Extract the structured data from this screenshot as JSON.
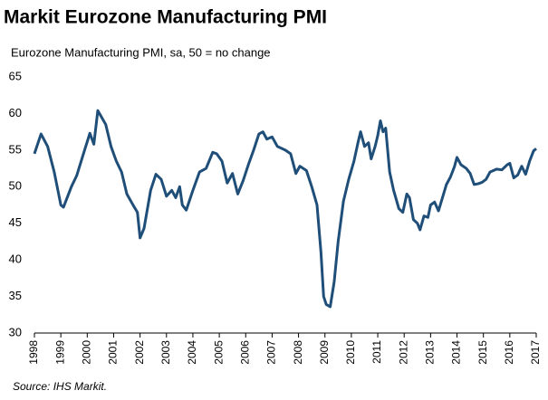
{
  "chart_data": {
    "type": "line",
    "title": "Markit Eurozone Manufacturing PMI",
    "subtitle": "Eurozone Manufacturing PMI, sa, 50 = no change",
    "source": "Source: IHS Markit.",
    "x": [
      1998.0,
      1998.25,
      1998.5,
      1998.75,
      1999.0,
      1999.1,
      1999.4,
      1999.6,
      1999.9,
      2000.1,
      2000.25,
      2000.4,
      2000.7,
      2000.9,
      2001.1,
      2001.3,
      2001.5,
      2001.75,
      2001.9,
      2002.0,
      2002.15,
      2002.4,
      2002.6,
      2002.8,
      2003.0,
      2003.2,
      2003.35,
      2003.5,
      2003.6,
      2003.75,
      2004.0,
      2004.25,
      2004.5,
      2004.75,
      2004.9,
      2005.1,
      2005.3,
      2005.5,
      2005.7,
      2005.9,
      2006.1,
      2006.3,
      2006.5,
      2006.65,
      2006.8,
      2007.0,
      2007.2,
      2007.5,
      2007.7,
      2007.9,
      2008.05,
      2008.3,
      2008.5,
      2008.7,
      2008.85,
      2008.95,
      2009.05,
      2009.2,
      2009.35,
      2009.5,
      2009.7,
      2009.9,
      2010.1,
      2010.25,
      2010.35,
      2010.5,
      2010.65,
      2010.75,
      2010.9,
      2011.0,
      2011.1,
      2011.2,
      2011.3,
      2011.45,
      2011.6,
      2011.8,
      2011.95,
      2012.1,
      2012.2,
      2012.35,
      2012.5,
      2012.6,
      2012.75,
      2012.9,
      2013.0,
      2013.15,
      2013.3,
      2013.45,
      2013.6,
      2013.75,
      2013.9,
      2014.0,
      2014.15,
      2014.35,
      2014.5,
      2014.65,
      2014.8,
      2014.95,
      2015.1,
      2015.25,
      2015.5,
      2015.7,
      2015.9,
      2016.0,
      2016.15,
      2016.3,
      2016.45,
      2016.6,
      2016.75,
      2016.9,
      2017.0
    ],
    "series": [
      {
        "name": "Eurozone Manufacturing PMI",
        "color": "#1f4e79",
        "values": [
          54.5,
          57.2,
          55.5,
          52,
          47.5,
          47.2,
          50,
          51.5,
          55,
          57.3,
          55.8,
          60.4,
          58.5,
          55.5,
          53.5,
          52,
          49,
          47.4,
          46.5,
          43,
          44.3,
          49.5,
          51.7,
          51,
          48.7,
          49.5,
          48.5,
          50,
          47.5,
          46.8,
          49.5,
          52,
          52.5,
          54.7,
          54.5,
          53.5,
          50.5,
          51.8,
          49,
          50.8,
          53,
          55,
          57.2,
          57.5,
          56.5,
          56.8,
          55.5,
          55,
          54.5,
          51.8,
          52.8,
          52.2,
          50,
          47.5,
          41,
          35,
          33.9,
          33.6,
          37,
          42.5,
          48,
          51,
          53.5,
          56,
          57.5,
          55.5,
          56,
          53.8,
          55.5,
          57,
          59,
          57.5,
          58,
          52,
          49.5,
          47,
          46.5,
          49,
          48.5,
          45.5,
          45,
          44.1,
          46,
          45.8,
          47.5,
          47.9,
          46.7,
          48.5,
          50.3,
          51.3,
          52.7,
          54,
          53,
          52.5,
          51.8,
          50.3,
          50.4,
          50.6,
          51,
          52,
          52.4,
          52.3,
          53,
          53.2,
          51.2,
          51.6,
          52.8,
          51.7,
          53.5,
          54.9,
          55.2
        ]
      }
    ],
    "xlim": [
      1998,
      2017
    ],
    "xticks": [
      1998,
      1999,
      2000,
      2001,
      2002,
      2003,
      2004,
      2005,
      2006,
      2007,
      2008,
      2009,
      2010,
      2011,
      2012,
      2013,
      2014,
      2015,
      2016,
      2017
    ],
    "ylim": [
      30,
      65
    ],
    "yticks": [
      30,
      35,
      40,
      45,
      50,
      55,
      60,
      65
    ],
    "grid": false
  }
}
